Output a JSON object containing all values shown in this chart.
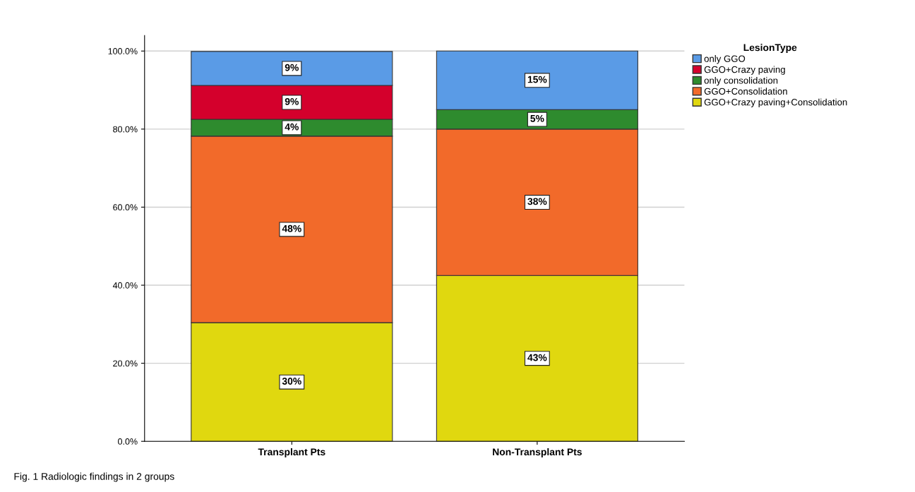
{
  "chart_data": {
    "type": "bar",
    "stacked": true,
    "categories": [
      "Transplant Pts",
      "Non-Transplant Pts"
    ],
    "series": [
      {
        "name": "GGO+Crazy paving+Consolidation",
        "color": "#e0d80f",
        "values": [
          30.4,
          42.5
        ],
        "value_labels": [
          "30%",
          "43%"
        ]
      },
      {
        "name": "GGO+Consolidation",
        "color": "#f26a2a",
        "values": [
          47.8,
          37.5
        ],
        "value_labels": [
          "48%",
          "38%"
        ]
      },
      {
        "name": "only consolidation",
        "color": "#2e8b2e",
        "values": [
          4.3,
          5
        ],
        "value_labels": [
          "4%",
          "5%"
        ]
      },
      {
        "name": "GGO+Crazy paving",
        "color": "#d4002c",
        "values": [
          8.7,
          null
        ],
        "value_labels": [
          "9%",
          null
        ]
      },
      {
        "name": "only GGO",
        "color": "#5a9be6",
        "values": [
          8.7,
          15
        ],
        "value_labels": [
          "9%",
          "15%"
        ]
      }
    ],
    "ylim": [
      0,
      104
    ],
    "yticks": [
      {
        "value": 0,
        "label": "0.0%"
      },
      {
        "value": 20,
        "label": "20.0%"
      },
      {
        "value": 40,
        "label": "40.0%"
      },
      {
        "value": 60,
        "label": "60.0%"
      },
      {
        "value": 80,
        "label": "80.0%"
      },
      {
        "value": 100,
        "label": "100.0%"
      }
    ],
    "grid": "y",
    "legend": "top right",
    "legend_title": "LesionType",
    "annotations": [
      "Fig. 1 Radiologic findings in 2 groups"
    ]
  }
}
